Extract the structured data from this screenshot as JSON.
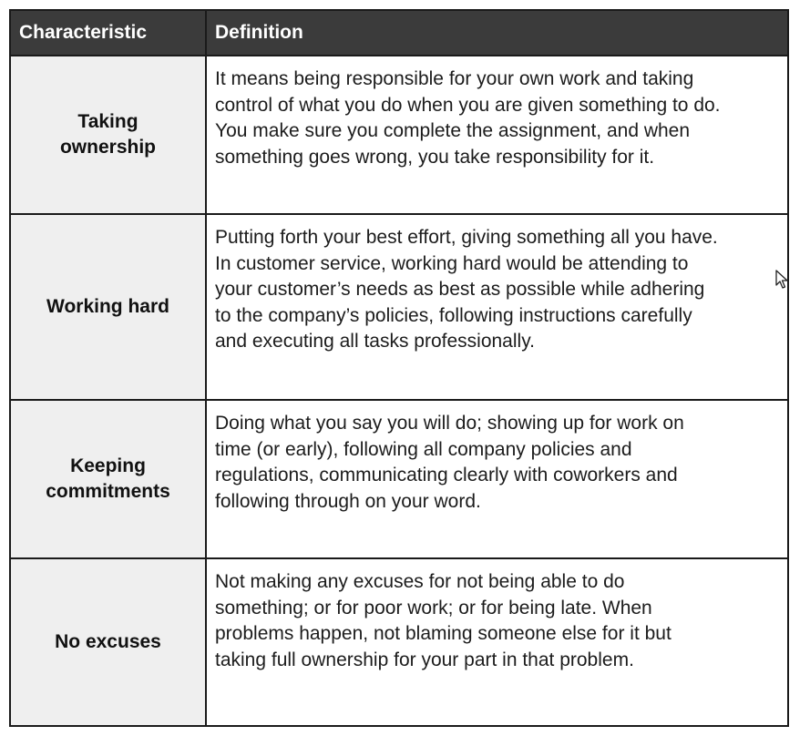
{
  "table": {
    "headers": [
      "Characteristic",
      "Definition"
    ],
    "rows": [
      {
        "characteristic": "Taking\nownership",
        "definition": "It means being responsible for your own work and taking\ncontrol of what you do when you are given something to do.\nYou make sure you complete the assignment, and when\nsomething goes wrong, you take responsibility for it."
      },
      {
        "characteristic": "Working hard",
        "definition": "Putting forth your best effort, giving something all you have.\nIn customer service, working hard would be attending to\nyour customer’s needs as best as possible while adhering\nto the company’s policies, following instructions carefully\nand executing all tasks professionally."
      },
      {
        "characteristic": "Keeping\ncommitments",
        "definition": "Doing what you say you will do; showing up for work on\ntime (or early), following all company policies and\nregulations, communicating clearly with coworkers and\nfollowing through on your word."
      },
      {
        "characteristic": "No excuses",
        "definition": "Not making any excuses for not being able to do\nsomething; or for poor work; or for being late. When\nproblems happen, not blaming someone else for it but\ntaking full ownership for your part in that problem."
      }
    ]
  },
  "cursor": {
    "icon": "mouse-pointer-icon"
  }
}
